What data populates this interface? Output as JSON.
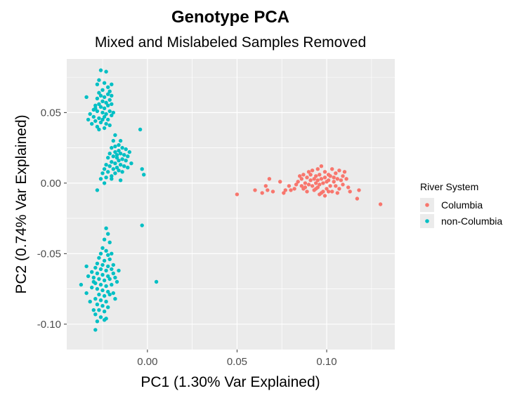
{
  "chart_data": {
    "type": "scatter",
    "title": "Genotype PCA",
    "subtitle": "Mixed and Mislabeled Samples Removed",
    "xlabel": "PC1 (1.30% Var Explained)",
    "ylabel": "PC2 (0.74% Var Explained)",
    "xlim": [
      -0.045,
      0.138
    ],
    "ylim": [
      -0.118,
      0.088
    ],
    "x_ticks": [
      0.0,
      0.05,
      0.1
    ],
    "x_tick_labels": [
      "0.00",
      "0.05",
      "0.10"
    ],
    "y_ticks": [
      -0.1,
      -0.05,
      0.0,
      0.05
    ],
    "y_tick_labels": [
      "-0.10",
      "-0.05",
      "0.00",
      "0.05"
    ],
    "grid": true,
    "legend": {
      "title": "River System",
      "position": "right",
      "entries": [
        "Columbia",
        "non-Columbia"
      ]
    },
    "colors": {
      "Columbia": "#F8766D",
      "non-Columbia": "#00BFC4",
      "panel": "#EBEBEB",
      "grid": "#FFFFFF"
    },
    "series": [
      {
        "name": "Columbia",
        "points": [
          [
            0.05,
            -0.008
          ],
          [
            0.06,
            -0.005
          ],
          [
            0.064,
            -0.007
          ],
          [
            0.066,
            -0.002
          ],
          [
            0.07,
            -0.006
          ],
          [
            0.068,
            0.003
          ],
          [
            0.074,
            0.001
          ],
          [
            0.067,
            -0.005
          ],
          [
            0.076,
            -0.007
          ],
          [
            0.077,
            -0.005
          ],
          [
            0.079,
            -0.002
          ],
          [
            0.08,
            -0.005
          ],
          [
            0.082,
            -0.004
          ],
          [
            0.083,
            -0.001
          ],
          [
            0.084,
            0.001
          ],
          [
            0.086,
            -0.002
          ],
          [
            0.086,
            0.003
          ],
          [
            0.087,
            0.006
          ],
          [
            0.088,
            0.0
          ],
          [
            0.088,
            -0.003
          ],
          [
            0.089,
            0.004
          ],
          [
            0.09,
            0.008
          ],
          [
            0.09,
            -0.001
          ],
          [
            0.091,
            0.002
          ],
          [
            0.091,
            0.006
          ],
          [
            0.092,
            -0.002
          ],
          [
            0.092,
            0.009
          ],
          [
            0.093,
            0.003
          ],
          [
            0.093,
            -0.005
          ],
          [
            0.094,
            0.0
          ],
          [
            0.094,
            0.005
          ],
          [
            0.095,
            0.002
          ],
          [
            0.095,
            -0.003
          ],
          [
            0.095,
            0.01
          ],
          [
            0.096,
            0.006
          ],
          [
            0.096,
            -0.001
          ],
          [
            0.097,
            0.003
          ],
          [
            0.097,
            0.012
          ],
          [
            0.098,
            0.0
          ],
          [
            0.098,
            -0.006
          ],
          [
            0.099,
            0.004
          ],
          [
            0.099,
            0.008
          ],
          [
            0.1,
            0.001
          ],
          [
            0.1,
            -0.004
          ],
          [
            0.101,
            0.006
          ],
          [
            0.101,
            0.002
          ],
          [
            0.102,
            -0.002
          ],
          [
            0.102,
            0.005
          ],
          [
            0.103,
            0.01
          ],
          [
            0.103,
            -0.006
          ],
          [
            0.104,
            0.001
          ],
          [
            0.104,
            0.004
          ],
          [
            0.105,
            -0.002
          ],
          [
            0.105,
            0.007
          ],
          [
            0.106,
            0.003
          ],
          [
            0.107,
            0.009
          ],
          [
            0.107,
            -0.004
          ],
          [
            0.108,
            0.002
          ],
          [
            0.109,
            0.005
          ],
          [
            0.109,
            -0.001
          ],
          [
            0.11,
            0.008
          ],
          [
            0.111,
            0.003
          ],
          [
            0.112,
            -0.003
          ],
          [
            0.113,
            -0.006
          ],
          [
            0.117,
            -0.011
          ],
          [
            0.097,
            -0.007
          ],
          [
            0.099,
            -0.009
          ],
          [
            0.087,
            -0.004
          ],
          [
            0.085,
            0.005
          ],
          [
            0.089,
            -0.006
          ],
          [
            0.118,
            -0.005
          ],
          [
            0.13,
            -0.015
          ],
          [
            0.096,
            -0.008
          ],
          [
            0.101,
            -0.006
          ],
          [
            0.094,
            -0.004
          ],
          [
            0.106,
            -0.007
          ]
        ]
      },
      {
        "name": "non-Columbia",
        "points": [
          [
            -0.026,
            0.08
          ],
          [
            -0.023,
            0.079
          ],
          [
            -0.027,
            0.073
          ],
          [
            -0.028,
            0.07
          ],
          [
            -0.024,
            0.071
          ],
          [
            -0.022,
            0.068
          ],
          [
            -0.025,
            0.066
          ],
          [
            -0.027,
            0.064
          ],
          [
            -0.026,
            0.062
          ],
          [
            -0.024,
            0.061
          ],
          [
            -0.022,
            0.063
          ],
          [
            -0.021,
            0.065
          ],
          [
            -0.028,
            0.06
          ],
          [
            -0.025,
            0.058
          ],
          [
            -0.023,
            0.057
          ],
          [
            -0.021,
            0.059
          ],
          [
            -0.02,
            0.062
          ],
          [
            -0.027,
            0.056
          ],
          [
            -0.029,
            0.055
          ],
          [
            -0.026,
            0.054
          ],
          [
            -0.024,
            0.053
          ],
          [
            -0.022,
            0.055
          ],
          [
            -0.02,
            0.056
          ],
          [
            -0.03,
            0.052
          ],
          [
            -0.028,
            0.051
          ],
          [
            -0.025,
            0.05
          ],
          [
            -0.023,
            0.049
          ],
          [
            -0.021,
            0.051
          ],
          [
            -0.032,
            0.049
          ],
          [
            -0.03,
            0.047
          ],
          [
            -0.027,
            0.046
          ],
          [
            -0.024,
            0.047
          ],
          [
            -0.022,
            0.045
          ],
          [
            -0.02,
            0.048
          ],
          [
            -0.019,
            0.05
          ],
          [
            -0.029,
            0.044
          ],
          [
            -0.026,
            0.043
          ],
          [
            -0.023,
            0.042
          ],
          [
            -0.031,
            0.042
          ],
          [
            -0.028,
            0.04
          ],
          [
            -0.033,
            0.045
          ],
          [
            -0.027,
            0.038
          ],
          [
            -0.024,
            0.039
          ],
          [
            -0.021,
            0.041
          ],
          [
            -0.029,
            0.053
          ],
          [
            -0.025,
            0.045
          ],
          [
            -0.034,
            0.061
          ],
          [
            -0.02,
            0.07
          ],
          [
            -0.004,
            0.038
          ],
          [
            -0.018,
            0.034
          ],
          [
            -0.019,
            0.03
          ],
          [
            -0.015,
            0.03
          ],
          [
            -0.016,
            0.027
          ],
          [
            -0.018,
            0.026
          ],
          [
            -0.02,
            0.025
          ],
          [
            -0.014,
            0.025
          ],
          [
            -0.012,
            0.024
          ],
          [
            -0.016,
            0.023
          ],
          [
            -0.018,
            0.022
          ],
          [
            -0.021,
            0.021
          ],
          [
            -0.015,
            0.021
          ],
          [
            -0.013,
            0.02
          ],
          [
            -0.019,
            0.019
          ],
          [
            -0.017,
            0.018
          ],
          [
            -0.011,
            0.019
          ],
          [
            -0.022,
            0.018
          ],
          [
            -0.014,
            0.017
          ],
          [
            -0.016,
            0.016
          ],
          [
            -0.02,
            0.015
          ],
          [
            -0.012,
            0.016
          ],
          [
            -0.018,
            0.014
          ],
          [
            -0.015,
            0.013
          ],
          [
            -0.021,
            0.012
          ],
          [
            -0.023,
            0.013
          ],
          [
            -0.017,
            0.011
          ],
          [
            -0.013,
            0.012
          ],
          [
            -0.019,
            0.01
          ],
          [
            -0.024,
            0.01
          ],
          [
            -0.016,
            0.009
          ],
          [
            -0.022,
            0.008
          ],
          [
            -0.025,
            0.007
          ],
          [
            -0.018,
            0.007
          ],
          [
            -0.02,
            0.005
          ],
          [
            -0.023,
            0.004
          ],
          [
            -0.026,
            0.003
          ],
          [
            -0.01,
            0.022
          ],
          [
            -0.009,
            0.014
          ],
          [
            -0.003,
            0.01
          ],
          [
            -0.002,
            0.006
          ],
          [
            -0.015,
            0.002
          ],
          [
            -0.028,
            -0.005
          ],
          [
            -0.024,
            0.0
          ],
          [
            -0.02,
            0.003
          ],
          [
            -0.014,
            0.008
          ],
          [
            -0.011,
            0.011
          ],
          [
            -0.017,
            0.02
          ],
          [
            -0.003,
            -0.03
          ],
          [
            0.005,
            -0.07
          ],
          [
            -0.023,
            -0.032
          ],
          [
            -0.022,
            -0.036
          ],
          [
            -0.024,
            -0.04
          ],
          [
            -0.021,
            -0.042
          ],
          [
            -0.025,
            -0.046
          ],
          [
            -0.023,
            -0.048
          ],
          [
            -0.026,
            -0.05
          ],
          [
            -0.022,
            -0.051
          ],
          [
            -0.027,
            -0.053
          ],
          [
            -0.024,
            -0.055
          ],
          [
            -0.021,
            -0.054
          ],
          [
            -0.028,
            -0.057
          ],
          [
            -0.025,
            -0.058
          ],
          [
            -0.022,
            -0.059
          ],
          [
            -0.019,
            -0.058
          ],
          [
            -0.029,
            -0.06
          ],
          [
            -0.026,
            -0.061
          ],
          [
            -0.023,
            -0.062
          ],
          [
            -0.02,
            -0.061
          ],
          [
            -0.031,
            -0.063
          ],
          [
            -0.028,
            -0.064
          ],
          [
            -0.025,
            -0.065
          ],
          [
            -0.022,
            -0.066
          ],
          [
            -0.019,
            -0.064
          ],
          [
            -0.033,
            -0.066
          ],
          [
            -0.03,
            -0.067
          ],
          [
            -0.027,
            -0.068
          ],
          [
            -0.024,
            -0.069
          ],
          [
            -0.021,
            -0.068
          ],
          [
            -0.018,
            -0.067
          ],
          [
            -0.029,
            -0.071
          ],
          [
            -0.026,
            -0.072
          ],
          [
            -0.023,
            -0.073
          ],
          [
            -0.02,
            -0.072
          ],
          [
            -0.031,
            -0.074
          ],
          [
            -0.028,
            -0.075
          ],
          [
            -0.025,
            -0.076
          ],
          [
            -0.022,
            -0.077
          ],
          [
            -0.027,
            -0.079
          ],
          [
            -0.024,
            -0.08
          ],
          [
            -0.021,
            -0.079
          ],
          [
            -0.029,
            -0.082
          ],
          [
            -0.026,
            -0.083
          ],
          [
            -0.023,
            -0.084
          ],
          [
            -0.028,
            -0.086
          ],
          [
            -0.025,
            -0.087
          ],
          [
            -0.022,
            -0.088
          ],
          [
            -0.027,
            -0.09
          ],
          [
            -0.024,
            -0.091
          ],
          [
            -0.029,
            -0.093
          ],
          [
            -0.026,
            -0.095
          ],
          [
            -0.023,
            -0.096
          ],
          [
            -0.028,
            -0.098
          ],
          [
            -0.029,
            -0.104
          ],
          [
            -0.037,
            -0.072
          ],
          [
            -0.034,
            -0.078
          ],
          [
            -0.032,
            -0.084
          ],
          [
            -0.03,
            -0.09
          ],
          [
            -0.019,
            -0.078
          ],
          [
            -0.017,
            -0.07
          ],
          [
            -0.016,
            -0.062
          ],
          [
            -0.02,
            -0.05
          ],
          [
            -0.034,
            -0.059
          ],
          [
            -0.024,
            -0.097
          ],
          [
            -0.03,
            -0.07
          ],
          [
            -0.018,
            -0.082
          ]
        ]
      }
    ]
  }
}
